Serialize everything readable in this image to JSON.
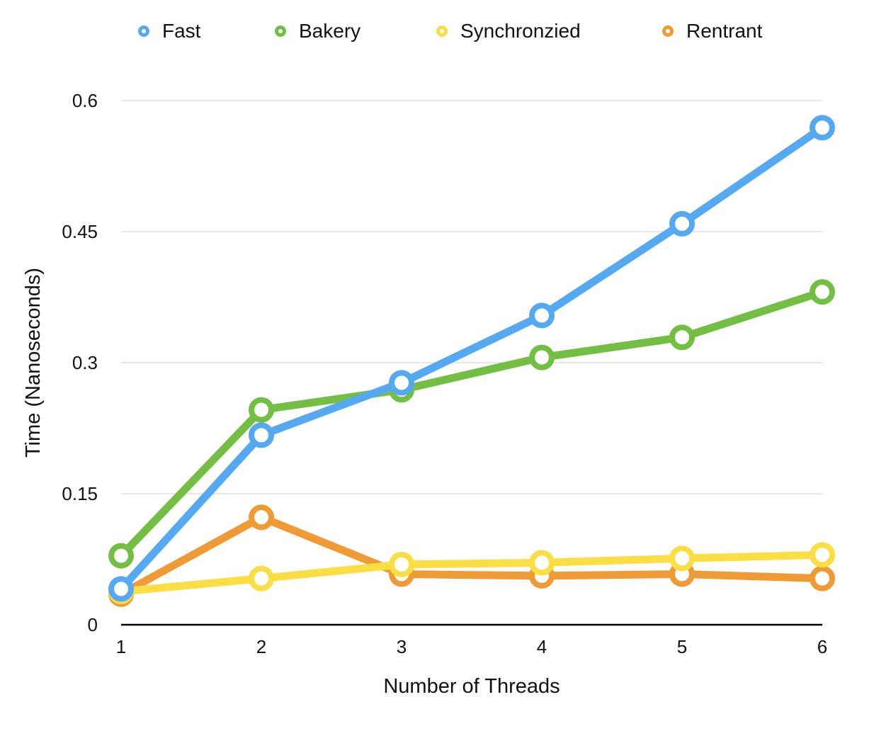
{
  "chart_data": {
    "type": "line",
    "title": "",
    "xlabel": "Number of Threads",
    "ylabel": "Time (Nanoseconds)",
    "x": [
      1,
      2,
      3,
      4,
      5,
      6
    ],
    "x_tick_labels": [
      "1",
      "2",
      "3",
      "4",
      "5",
      "6"
    ],
    "y_tick_values": [
      0,
      0.15,
      0.3,
      0.45,
      0.6
    ],
    "y_tick_labels": [
      "0",
      "0.15",
      "0.3",
      "0.45",
      "0.6"
    ],
    "ylim": [
      0,
      0.6
    ],
    "grid": "horizontal",
    "legend_position": "top",
    "series": [
      {
        "name": "Fast",
        "color": "#55a9f2",
        "values": [
          0.041,
          0.217,
          0.277,
          0.354,
          0.459,
          0.569
        ]
      },
      {
        "name": "Bakery",
        "color": "#72bf44",
        "values": [
          0.079,
          0.246,
          0.269,
          0.306,
          0.329,
          0.381
        ]
      },
      {
        "name": "Rentrant",
        "color": "#f09a35",
        "values": [
          0.035,
          0.123,
          0.058,
          0.056,
          0.058,
          0.053
        ]
      },
      {
        "name": "Synchronzied",
        "color": "#fbde44",
        "values": [
          0.038,
          0.053,
          0.069,
          0.071,
          0.076,
          0.08
        ]
      }
    ],
    "legend_order": [
      "Fast",
      "Bakery",
      "Synchronzied",
      "Rentrant"
    ]
  }
}
